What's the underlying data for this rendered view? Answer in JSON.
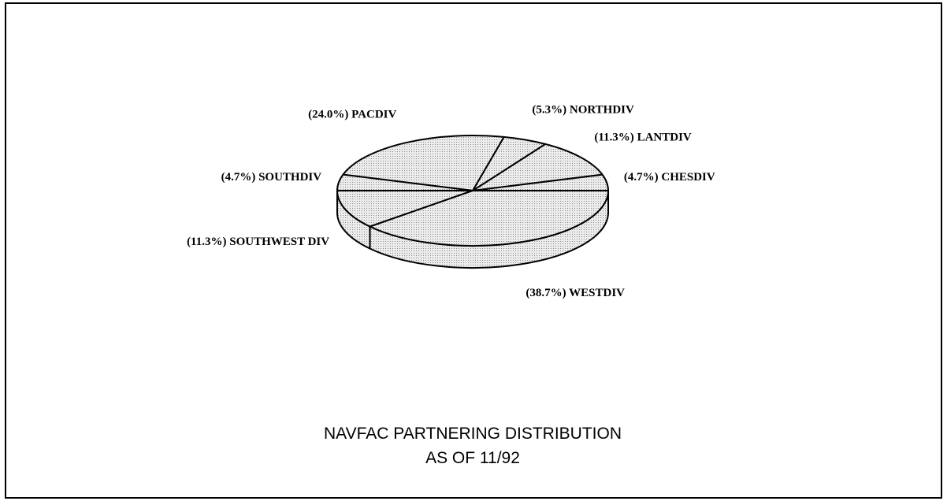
{
  "chart_data": {
    "type": "pie3d",
    "title": "NAVFAC PARTNERING DISTRIBUTION",
    "subtitle": "AS OF 11/92",
    "categories": [
      "CHESDIV",
      "LANTDIV",
      "NORTHDIV",
      "PACDIV",
      "SOUTHDIV",
      "SOUTHWEST DIV",
      "WESTDIV"
    ],
    "values": [
      4.7,
      11.3,
      5.3,
      24.0,
      4.7,
      11.3,
      38.7
    ],
    "value_labels": [
      "(4.7%)",
      "(11.3%)",
      "(5.3%)",
      "(24.0%)",
      "(4.7%)",
      "(11.3%)",
      "(38.7%)"
    ],
    "color": "#e6e6e6"
  }
}
